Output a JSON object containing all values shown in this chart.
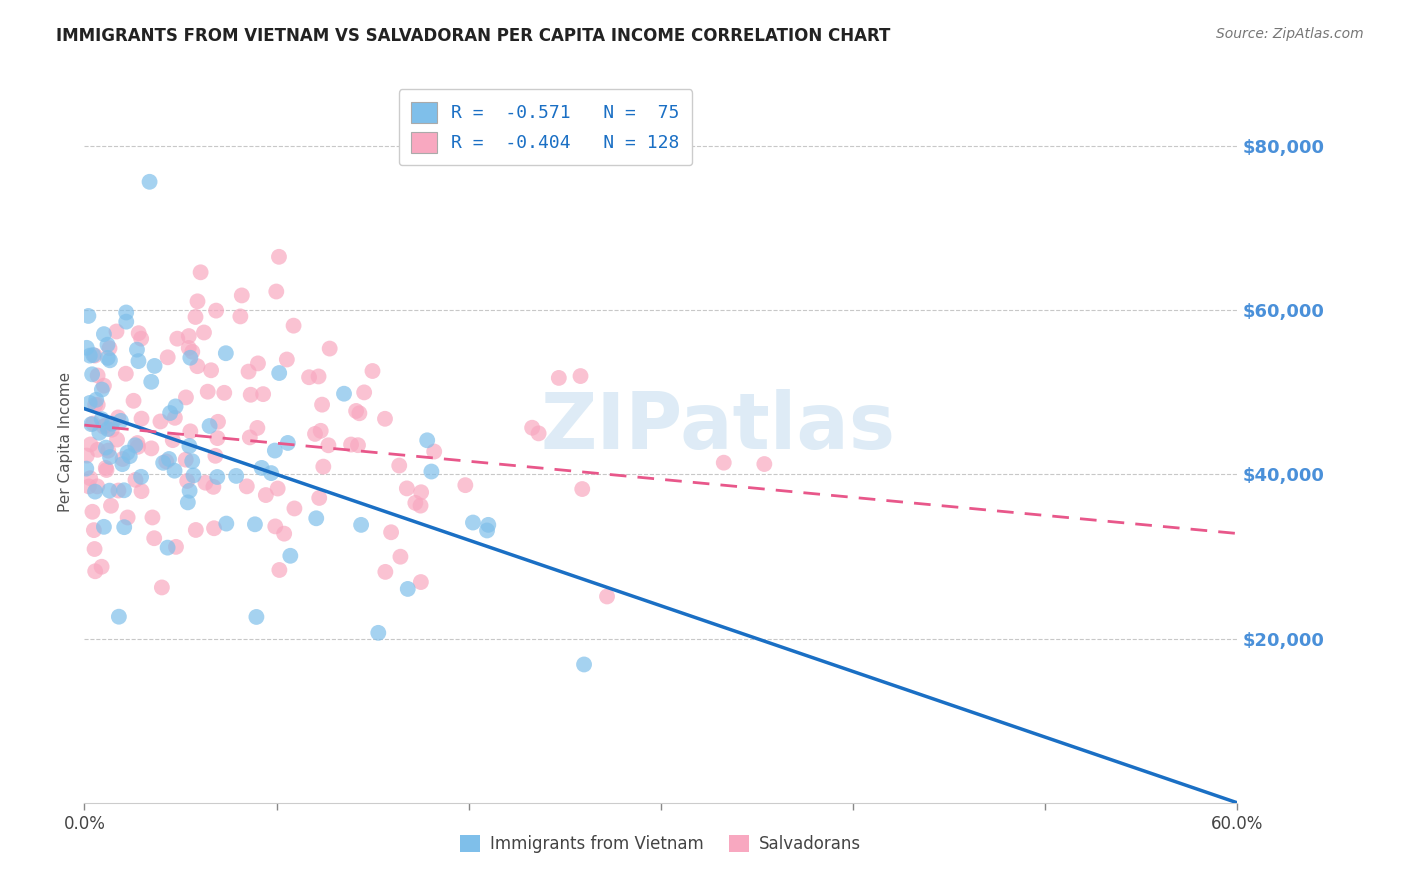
{
  "title": "IMMIGRANTS FROM VIETNAM VS SALVADORAN PER CAPITA INCOME CORRELATION CHART",
  "source": "Source: ZipAtlas.com",
  "ylabel": "Per Capita Income",
  "yticks": [
    20000,
    40000,
    60000,
    80000
  ],
  "ytick_labels": [
    "$20,000",
    "$40,000",
    "$60,000",
    "$80,000"
  ],
  "legend_label1": "Immigrants from Vietnam",
  "legend_label2": "Salvadorans",
  "watermark": "ZIPatlas",
  "blue_color": "#7fbfea",
  "pink_color": "#f8a8c0",
  "blue_line_color": "#1a6fc4",
  "pink_line_color": "#e8578a",
  "xmin": 0.0,
  "xmax": 0.6,
  "ymin": 0,
  "ymax": 88000,
  "blue_intercept": 48000,
  "blue_slope": -80000,
  "pink_intercept": 46000,
  "pink_slope": -22000,
  "figsize": [
    14.06,
    8.92
  ],
  "dpi": 100
}
